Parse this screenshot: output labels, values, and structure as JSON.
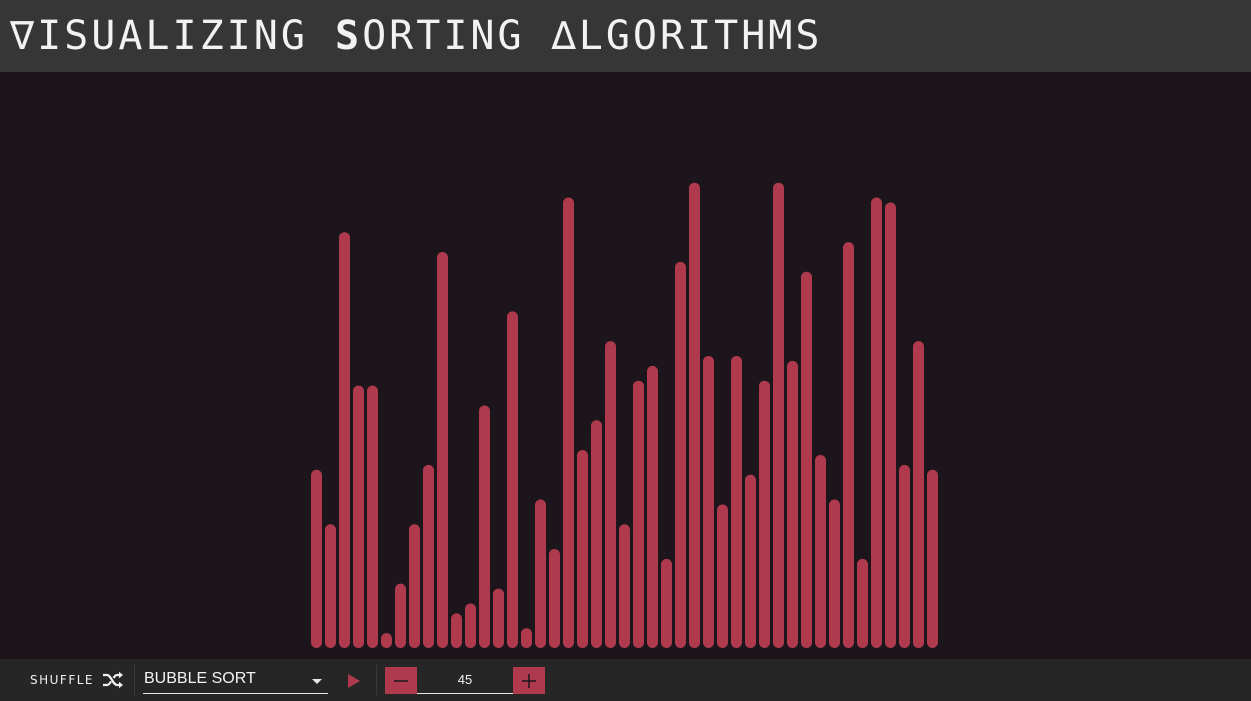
{
  "header": {
    "title_parts": [
      {
        "text": "∇ISUALIZING ",
        "bold": false
      },
      {
        "text": "S",
        "bold": true
      },
      {
        "text": "ORTING ∆LGORITHMS",
        "bold": false
      }
    ]
  },
  "visualizer": {
    "bar_color": "#b03a4d",
    "max_value": 100,
    "values": [
      36,
      25,
      84,
      53,
      53,
      3,
      13,
      25,
      37,
      80,
      7,
      9,
      49,
      12,
      68,
      4,
      30,
      20,
      91,
      40,
      46,
      62,
      25,
      54,
      57,
      18,
      78,
      94,
      59,
      29,
      59,
      35,
      54,
      94,
      58,
      76,
      39,
      30,
      82,
      18,
      91,
      90,
      37,
      62,
      36
    ]
  },
  "controls": {
    "shuffle_label": "SHUFFLE",
    "shuffle_icon": "shuffle-icon",
    "algorithm_selected": "BUBBLE SORT",
    "play_icon": "play-icon",
    "size_value": "45",
    "minus_icon": "minus-icon",
    "plus_icon": "plus-icon",
    "accent_color": "#b03a4d"
  }
}
